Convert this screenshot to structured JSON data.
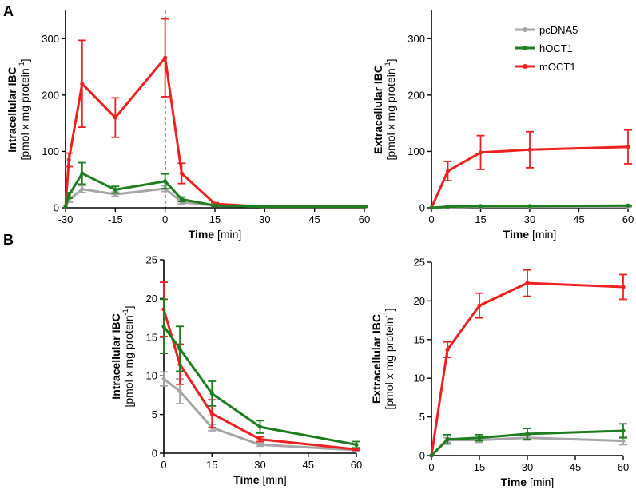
{
  "panel_labels": [
    "A",
    "B"
  ],
  "legend": [
    {
      "name": "pcDNA5",
      "color": "#a6a6a8"
    },
    {
      "name": "hOCT1",
      "color": "#1e7d1e"
    },
    {
      "name": "mOCT1",
      "color": "#ee2020"
    }
  ],
  "chart_data": [
    {
      "id": "A1",
      "type": "line",
      "panel": "A",
      "title": "",
      "xlabel_bold": "Time",
      "xlabel_unit": " [min]",
      "ylabel_bold": "Intracellular IBC",
      "ylabel_unit": "[pmol x mg protein",
      "ylabel_sup": "-1",
      "ylabel_end": "]",
      "xlim": [
        -30,
        60
      ],
      "ylim": [
        0,
        350
      ],
      "xticks": [
        -30,
        -15,
        0,
        15,
        30,
        45,
        60
      ],
      "yticks": [
        0,
        100,
        200,
        300
      ],
      "vline": 0,
      "series": [
        {
          "name": "pcDNA5",
          "x": [
            -30,
            -29,
            -25,
            -15,
            0,
            5,
            15,
            30,
            60
          ],
          "y": [
            2,
            14,
            33,
            24,
            34,
            10,
            4,
            2,
            2
          ],
          "err": [
            0,
            4,
            6,
            4,
            5,
            3,
            1,
            1,
            1
          ]
        },
        {
          "name": "hOCT1",
          "x": [
            -30,
            -29,
            -25,
            -15,
            0,
            5,
            15,
            30,
            60
          ],
          "y": [
            2,
            22,
            61,
            32,
            47,
            15,
            4,
            2,
            2
          ],
          "err": [
            0,
            5,
            19,
            6,
            13,
            4,
            1,
            1,
            1
          ]
        },
        {
          "name": "mOCT1",
          "x": [
            -30,
            -29,
            -25,
            -15,
            0,
            5,
            15,
            30,
            60
          ],
          "y": [
            2,
            85,
            220,
            160,
            266,
            61,
            7,
            2,
            2
          ],
          "err": [
            0,
            12,
            77,
            35,
            69,
            18,
            2,
            1,
            1
          ]
        }
      ]
    },
    {
      "id": "A2",
      "type": "line",
      "panel": "A",
      "title": "",
      "xlabel_bold": "Time",
      "xlabel_unit": " [min]",
      "ylabel_bold": "Extracellular IBC",
      "ylabel_unit": "[pmol x mg protein",
      "ylabel_sup": "-1",
      "ylabel_end": "]",
      "xlim": [
        0,
        60
      ],
      "ylim": [
        0,
        350
      ],
      "xticks": [
        0,
        15,
        30,
        45,
        60
      ],
      "yticks": [
        0,
        100,
        200,
        300
      ],
      "series": [
        {
          "name": "pcDNA5",
          "x": [
            0,
            5,
            15,
            30,
            60
          ],
          "y": [
            0,
            1,
            2,
            2,
            2
          ],
          "err": [
            0,
            0.5,
            0.5,
            0.5,
            0.5
          ]
        },
        {
          "name": "hOCT1",
          "x": [
            0,
            5,
            15,
            30,
            60
          ],
          "y": [
            0,
            2,
            3,
            3,
            4
          ],
          "err": [
            0,
            0.5,
            0.5,
            0.5,
            0.5
          ]
        },
        {
          "name": "mOCT1",
          "x": [
            0,
            5,
            15,
            30,
            60
          ],
          "y": [
            0,
            65,
            98,
            103,
            108
          ],
          "err": [
            0,
            17,
            30,
            32,
            30
          ]
        }
      ]
    },
    {
      "id": "B1",
      "type": "line",
      "panel": "B",
      "title": "",
      "xlabel_bold": "Time",
      "xlabel_unit": " [min]",
      "ylabel_bold": "Intracellular IBC",
      "ylabel_unit": "[pmol x mg protein",
      "ylabel_sup": "-1",
      "ylabel_end": "]",
      "xlim": [
        0,
        60
      ],
      "ylim": [
        0,
        25
      ],
      "xticks": [
        0,
        15,
        30,
        45,
        60
      ],
      "yticks": [
        0,
        5,
        10,
        15,
        20,
        25
      ],
      "series": [
        {
          "name": "pcDNA5",
          "x": [
            0,
            5,
            15,
            30,
            60
          ],
          "y": [
            9.6,
            8.0,
            3.3,
            1.1,
            0.4
          ],
          "err": [
            0.9,
            1.6,
            0.4,
            0.2,
            0.1
          ]
        },
        {
          "name": "hOCT1",
          "x": [
            0,
            5,
            15,
            30,
            60
          ],
          "y": [
            16.4,
            13.5,
            7.7,
            3.4,
            1.1
          ],
          "err": [
            3.5,
            2.9,
            1.6,
            0.8,
            0.4
          ]
        },
        {
          "name": "mOCT1",
          "x": [
            0,
            5,
            15,
            30,
            60
          ],
          "y": [
            18.6,
            11.5,
            5.1,
            1.8,
            0.5
          ],
          "err": [
            3.5,
            2.6,
            1.8,
            0.3,
            0.1
          ]
        }
      ]
    },
    {
      "id": "B2",
      "type": "line",
      "panel": "B",
      "title": "",
      "xlabel_bold": "Time",
      "xlabel_unit": " [min]",
      "ylabel_bold": "Extracellular IBC",
      "ylabel_unit": "[pmol x mg protein",
      "ylabel_sup": "-1",
      "ylabel_end": "]",
      "xlim": [
        0,
        60
      ],
      "ylim": [
        0,
        25
      ],
      "xticks": [
        0,
        15,
        30,
        45,
        60
      ],
      "yticks": [
        0,
        5,
        10,
        15,
        20,
        25
      ],
      "series": [
        {
          "name": "pcDNA5",
          "x": [
            0,
            5,
            15,
            30,
            60
          ],
          "y": [
            0,
            2.0,
            2.0,
            2.3,
            1.9
          ],
          "err": [
            0,
            0.3,
            0.3,
            0.3,
            0.5
          ]
        },
        {
          "name": "hOCT1",
          "x": [
            0,
            5,
            15,
            30,
            60
          ],
          "y": [
            0,
            2.1,
            2.3,
            2.8,
            3.2
          ],
          "err": [
            0,
            0.6,
            0.4,
            0.7,
            0.9
          ]
        },
        {
          "name": "mOCT1",
          "x": [
            0,
            5,
            15,
            30,
            60
          ],
          "y": [
            0,
            13.7,
            19.4,
            22.3,
            21.8
          ],
          "err": [
            0,
            1.0,
            1.6,
            1.7,
            1.6
          ]
        }
      ]
    }
  ]
}
